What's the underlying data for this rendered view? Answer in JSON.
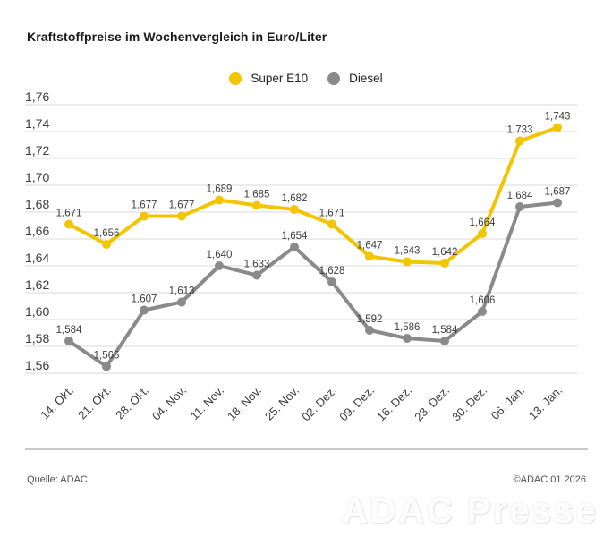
{
  "title": "Kraftstoffpreise im Wochenvergleich in Euro/Liter",
  "legend": [
    {
      "label": "Super E10",
      "color": "#F2C500"
    },
    {
      "label": "Diesel",
      "color": "#8A8A8A"
    }
  ],
  "footer": {
    "source": "Quelle: ADAC",
    "copyright": "©ADAC 01.2026",
    "watermark": "ADAC Presse"
  },
  "colors": {
    "gridline": "#d8d8d8",
    "axis_text": "#3c3c3c",
    "data_label": "#3d3d3d"
  },
  "chart_data": {
    "type": "line",
    "title": "Kraftstoffpreise im Wochenvergleich in Euro/Liter",
    "categories": [
      "14. Okt.",
      "21. Okt.",
      "28. Okt.",
      "04. Nov.",
      "11. Nov.",
      "18. Nov.",
      "25. Nov.",
      "02. Dez.",
      "09. Dez.",
      "16. Dez.",
      "23. Dez.",
      "30. Dez.",
      "06. Jan.",
      "13. Jan."
    ],
    "series": [
      {
        "name": "Super E10",
        "color": "#F2C500",
        "values": [
          1.671,
          1.656,
          1.677,
          1.677,
          1.689,
          1.685,
          1.682,
          1.671,
          1.647,
          1.643,
          1.642,
          1.664,
          1.733,
          1.743
        ]
      },
      {
        "name": "Diesel",
        "color": "#8A8A8A",
        "values": [
          1.584,
          1.565,
          1.607,
          1.613,
          1.64,
          1.633,
          1.654,
          1.628,
          1.592,
          1.586,
          1.584,
          1.606,
          1.684,
          1.687
        ]
      }
    ],
    "xlabel": "",
    "ylabel": "",
    "ylim": [
      1.56,
      1.76
    ],
    "ytick_step": 0.02,
    "grid": "horizontal",
    "legend_position": "top-center",
    "decimal_separator": ",",
    "point_labels": true
  }
}
